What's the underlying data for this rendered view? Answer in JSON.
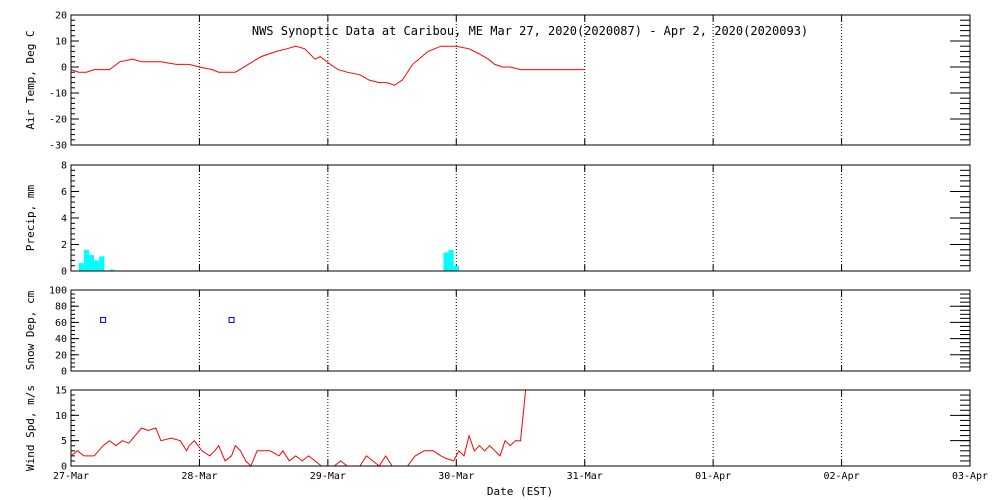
{
  "title": "NWS Synoptic Data at Caribou, ME   Mar 27, 2020(2020087) - Apr  2, 2020(2020093)",
  "xlabel": "Date (EST)",
  "x_ticks": [
    "27-Mar",
    "28-Mar",
    "29-Mar",
    "30-Mar",
    "31-Mar",
    "01-Apr",
    "02-Apr",
    "03-Apr"
  ],
  "colors": {
    "line": "#ff0000",
    "bar": "#00ffff",
    "marker": "#0000cc",
    "grid": "#000000"
  },
  "chart_data": [
    {
      "type": "line",
      "ylabel": "Air Temp, Deg C",
      "ylim": [
        -30,
        20
      ],
      "yticks": [
        20,
        10,
        0,
        -10,
        -20,
        -30
      ],
      "xlim_days": [
        0,
        7
      ],
      "grid": true,
      "points": [
        [
          0.0,
          -1
        ],
        [
          0.06,
          -2
        ],
        [
          0.12,
          -2
        ],
        [
          0.18,
          -1
        ],
        [
          0.3,
          -1
        ],
        [
          0.38,
          2
        ],
        [
          0.48,
          3
        ],
        [
          0.55,
          2
        ],
        [
          0.7,
          2
        ],
        [
          0.82,
          1
        ],
        [
          0.92,
          1
        ],
        [
          1.0,
          0
        ],
        [
          1.1,
          -1
        ],
        [
          1.15,
          -2
        ],
        [
          1.28,
          -2
        ],
        [
          1.38,
          1
        ],
        [
          1.48,
          4
        ],
        [
          1.6,
          6
        ],
        [
          1.68,
          7
        ],
        [
          1.75,
          8
        ],
        [
          1.82,
          7
        ],
        [
          1.9,
          3
        ],
        [
          1.94,
          4
        ],
        [
          2.02,
          1
        ],
        [
          2.08,
          -1
        ],
        [
          2.15,
          -2
        ],
        [
          2.25,
          -3
        ],
        [
          2.32,
          -5
        ],
        [
          2.4,
          -6
        ],
        [
          2.46,
          -6
        ],
        [
          2.52,
          -7
        ],
        [
          2.58,
          -5
        ],
        [
          2.66,
          1
        ],
        [
          2.78,
          6
        ],
        [
          2.88,
          8
        ],
        [
          3.0,
          8
        ],
        [
          3.1,
          7
        ],
        [
          3.18,
          5
        ],
        [
          3.25,
          3
        ],
        [
          3.3,
          1
        ],
        [
          3.36,
          0
        ],
        [
          3.42,
          0
        ],
        [
          3.5,
          -1
        ],
        [
          3.8,
          -1
        ],
        [
          4.0,
          -1
        ]
      ]
    },
    {
      "type": "bar",
      "ylabel": "Precip, mm",
      "ylim": [
        0,
        8
      ],
      "yticks": [
        8,
        6,
        4,
        2,
        0
      ],
      "xlim_days": [
        0,
        7
      ],
      "grid": true,
      "bar_width_days": 0.04,
      "points": [
        [
          0.08,
          0.6
        ],
        [
          0.12,
          1.6
        ],
        [
          0.16,
          1.2
        ],
        [
          0.2,
          0.8
        ],
        [
          0.24,
          1.1
        ],
        [
          0.32,
          0.1
        ],
        [
          2.92,
          1.4
        ],
        [
          2.96,
          1.6
        ],
        [
          3.0,
          0.4
        ]
      ]
    },
    {
      "type": "scatter",
      "ylabel": "Snow Dep, cm",
      "ylim": [
        0,
        100
      ],
      "yticks": [
        100,
        80,
        60,
        40,
        20,
        0
      ],
      "xlim_days": [
        0,
        7
      ],
      "grid": true,
      "points": [
        [
          0.25,
          63
        ],
        [
          1.25,
          63
        ]
      ]
    },
    {
      "type": "line",
      "ylabel": "Wind Spd, m/s",
      "ylim": [
        0,
        15
      ],
      "yticks": [
        15,
        10,
        5,
        0
      ],
      "xlim_days": [
        0,
        7
      ],
      "grid": true,
      "points": [
        [
          0.0,
          2
        ],
        [
          0.05,
          3
        ],
        [
          0.1,
          2
        ],
        [
          0.18,
          2
        ],
        [
          0.25,
          4
        ],
        [
          0.3,
          5
        ],
        [
          0.35,
          4
        ],
        [
          0.4,
          5
        ],
        [
          0.45,
          4.5
        ],
        [
          0.5,
          6
        ],
        [
          0.55,
          7.5
        ],
        [
          0.6,
          7
        ],
        [
          0.66,
          7.5
        ],
        [
          0.7,
          5
        ],
        [
          0.78,
          5.5
        ],
        [
          0.85,
          5
        ],
        [
          0.9,
          3
        ],
        [
          0.92,
          4
        ],
        [
          0.96,
          5
        ],
        [
          1.02,
          3
        ],
        [
          1.08,
          2
        ],
        [
          1.12,
          3
        ],
        [
          1.15,
          4
        ],
        [
          1.2,
          1
        ],
        [
          1.25,
          2
        ],
        [
          1.28,
          4
        ],
        [
          1.32,
          3
        ],
        [
          1.36,
          1
        ],
        [
          1.4,
          0
        ],
        [
          1.45,
          3
        ],
        [
          1.55,
          3
        ],
        [
          1.62,
          2
        ],
        [
          1.65,
          3
        ],
        [
          1.7,
          1
        ],
        [
          1.75,
          2
        ],
        [
          1.8,
          1
        ],
        [
          1.85,
          2
        ],
        [
          1.9,
          1
        ],
        [
          1.95,
          0
        ],
        [
          2.05,
          0
        ],
        [
          2.1,
          1
        ],
        [
          2.15,
          0
        ],
        [
          2.2,
          0
        ],
        [
          2.25,
          0
        ],
        [
          2.3,
          2
        ],
        [
          2.35,
          1
        ],
        [
          2.4,
          0
        ],
        [
          2.45,
          2
        ],
        [
          2.5,
          0
        ],
        [
          2.62,
          0
        ],
        [
          2.68,
          2
        ],
        [
          2.75,
          3
        ],
        [
          2.82,
          3
        ],
        [
          2.88,
          2
        ],
        [
          2.92,
          1.5
        ],
        [
          2.98,
          1
        ],
        [
          3.02,
          3
        ],
        [
          3.06,
          2
        ],
        [
          3.1,
          6
        ],
        [
          3.14,
          3
        ],
        [
          3.18,
          4
        ],
        [
          3.22,
          3
        ],
        [
          3.26,
          4
        ],
        [
          3.3,
          3
        ],
        [
          3.34,
          2
        ],
        [
          3.38,
          5
        ],
        [
          3.42,
          4
        ],
        [
          3.46,
          5
        ],
        [
          3.5,
          5
        ],
        [
          3.52,
          10
        ],
        [
          3.54,
          15
        ]
      ]
    }
  ]
}
